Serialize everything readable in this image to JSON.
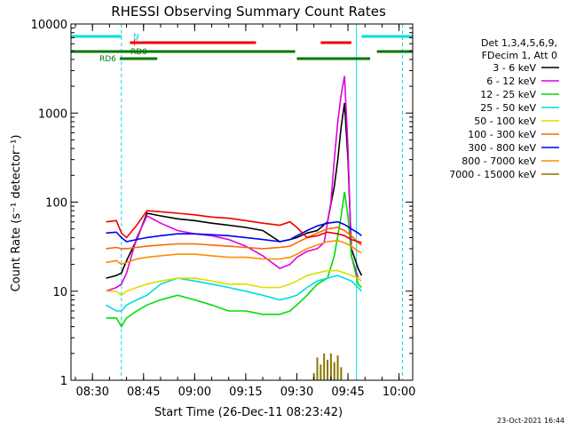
{
  "chart_data": {
    "type": "line",
    "title": "RHESSI Observing Summary Count Rates",
    "xlabel": "Start Time (26-Dec-11 08:23:42)",
    "ylabel": "Count Rate (s⁻¹ detector⁻¹)",
    "y_scale": "log",
    "ylim": [
      1,
      10000
    ],
    "y_ticks": [
      {
        "value": 1,
        "label": "1"
      },
      {
        "value": 10,
        "label": "10"
      },
      {
        "value": 100,
        "label": "100"
      },
      {
        "value": 1000,
        "label": "1000"
      },
      {
        "value": 10000,
        "label": "10000"
      }
    ],
    "xlim": [
      "08:23:42",
      "10:04:00"
    ],
    "x_ticks": [
      "08:30",
      "08:45",
      "09:00",
      "09:15",
      "09:30",
      "09:45",
      "10:00"
    ],
    "grid": false,
    "legend_position": "right",
    "legend_header": [
      "Det 1,3,4,5,6,9,",
      "FDecim 1, Att 0"
    ],
    "footer_timestamp": "23-Oct-2021 16:44",
    "flags": {
      "N_label": "N",
      "F_label": "F",
      "RD0_label": "RD0",
      "RD6_label": "RD6",
      "N": [
        [
          "08:23:42",
          "08:38:30"
        ],
        [
          "09:49:00",
          "10:04:00"
        ]
      ],
      "F": [
        [
          "08:41:00",
          "09:18:00"
        ],
        [
          "09:37:00",
          "09:46:00"
        ]
      ],
      "RD0": [
        [
          "08:23:42",
          "09:29:30"
        ],
        [
          "09:53:30",
          "10:04:00"
        ]
      ],
      "RD6": [
        [
          "08:38:00",
          "08:49:00"
        ],
        [
          "09:30:00",
          "09:51:30"
        ]
      ]
    },
    "markers": [
      {
        "name": "night-start",
        "time": "08:23:42",
        "style": "solid"
      },
      {
        "name": "night-end",
        "time": "08:38:30",
        "style": "dashed"
      },
      {
        "name": "night-start-2",
        "time": "09:47:30",
        "style": "solid"
      },
      {
        "name": "night-end-2",
        "time": "10:01:00",
        "style": "dashed"
      }
    ],
    "series": [
      {
        "name": "3 - 6 keV",
        "color": "#000000",
        "points": [
          [
            "08:34",
            "14"
          ],
          [
            "08:37",
            "15"
          ],
          [
            "08:38:30",
            "16"
          ],
          [
            "08:40",
            "22"
          ],
          [
            "08:43",
            "38"
          ],
          [
            "08:46",
            "75"
          ],
          [
            "08:50",
            "70"
          ],
          [
            "08:55",
            "65"
          ],
          [
            "09:00",
            "62"
          ],
          [
            "09:05",
            "58"
          ],
          [
            "09:10",
            "55"
          ],
          [
            "09:15",
            "52"
          ],
          [
            "09:20",
            "48"
          ],
          [
            "09:25",
            "36"
          ],
          [
            "09:28",
            "38"
          ],
          [
            "09:30",
            "40"
          ],
          [
            "09:33",
            "45"
          ],
          [
            "09:36",
            "48"
          ],
          [
            "09:39",
            "60"
          ],
          [
            "09:41",
            "150"
          ],
          [
            "09:42",
            "300"
          ],
          [
            "09:43",
            "700"
          ],
          [
            "09:44",
            "1300"
          ],
          [
            "09:45",
            "300"
          ],
          [
            "09:46",
            "30"
          ],
          [
            "09:48",
            "18"
          ],
          [
            "09:49",
            "15"
          ]
        ]
      },
      {
        "name": "6 - 12 keV",
        "color": "#e000e0",
        "points": [
          [
            "08:34",
            "10"
          ],
          [
            "08:37",
            "11"
          ],
          [
            "08:38:30",
            "12"
          ],
          [
            "08:40",
            "16"
          ],
          [
            "08:43",
            "40"
          ],
          [
            "08:46",
            "70"
          ],
          [
            "08:50",
            "58"
          ],
          [
            "08:55",
            "48"
          ],
          [
            "09:00",
            "44"
          ],
          [
            "09:05",
            "42"
          ],
          [
            "09:10",
            "38"
          ],
          [
            "09:15",
            "32"
          ],
          [
            "09:20",
            "25"
          ],
          [
            "09:25",
            "18"
          ],
          [
            "09:28",
            "20"
          ],
          [
            "09:30",
            "24"
          ],
          [
            "09:33",
            "28"
          ],
          [
            "09:36",
            "30"
          ],
          [
            "09:38",
            "35"
          ],
          [
            "09:40",
            "100"
          ],
          [
            "09:41",
            "300"
          ],
          [
            "09:42",
            "800"
          ],
          [
            "09:43",
            "1600"
          ],
          [
            "09:44",
            "2600"
          ],
          [
            "09:45",
            "400"
          ],
          [
            "09:46",
            "25"
          ],
          [
            "09:48",
            "14"
          ],
          [
            "09:49",
            "13"
          ]
        ]
      },
      {
        "name": "12 - 25 keV",
        "color": "#00dd00",
        "points": [
          [
            "08:34",
            "5"
          ],
          [
            "08:37",
            "5"
          ],
          [
            "08:38:30",
            "4"
          ],
          [
            "08:40",
            "5"
          ],
          [
            "08:43",
            "6"
          ],
          [
            "08:46",
            "7"
          ],
          [
            "08:50",
            "8"
          ],
          [
            "08:55",
            "9"
          ],
          [
            "09:00",
            "8"
          ],
          [
            "09:05",
            "7"
          ],
          [
            "09:10",
            "6"
          ],
          [
            "09:15",
            "6"
          ],
          [
            "09:20",
            "5.5"
          ],
          [
            "09:25",
            "5.5"
          ],
          [
            "09:28",
            "6"
          ],
          [
            "09:30",
            "7"
          ],
          [
            "09:33",
            "9"
          ],
          [
            "09:36",
            "12"
          ],
          [
            "09:39",
            "14"
          ],
          [
            "09:41",
            "25"
          ],
          [
            "09:43",
            "70"
          ],
          [
            "09:44",
            "130"
          ],
          [
            "09:45",
            "70"
          ],
          [
            "09:46",
            "25"
          ],
          [
            "09:48",
            "12"
          ],
          [
            "09:49",
            "11"
          ]
        ]
      },
      {
        "name": "25 - 50 keV",
        "color": "#00dddd",
        "points": [
          [
            "08:34",
            "7"
          ],
          [
            "08:37",
            "6"
          ],
          [
            "08:38:30",
            "6"
          ],
          [
            "08:40",
            "7"
          ],
          [
            "08:43",
            "8"
          ],
          [
            "08:46",
            "9"
          ],
          [
            "08:50",
            "12"
          ],
          [
            "08:55",
            "14"
          ],
          [
            "09:00",
            "13"
          ],
          [
            "09:05",
            "12"
          ],
          [
            "09:10",
            "11"
          ],
          [
            "09:15",
            "10"
          ],
          [
            "09:20",
            "9"
          ],
          [
            "09:25",
            "8"
          ],
          [
            "09:28",
            "8.5"
          ],
          [
            "09:30",
            "9"
          ],
          [
            "09:33",
            "11"
          ],
          [
            "09:36",
            "13"
          ],
          [
            "09:39",
            "14"
          ],
          [
            "09:42",
            "15"
          ],
          [
            "09:44",
            "14"
          ],
          [
            "09:46",
            "13"
          ],
          [
            "09:48",
            "11"
          ],
          [
            "09:49",
            "10"
          ]
        ]
      },
      {
        "name": "50 - 100 keV",
        "color": "#dddd00",
        "points": [
          [
            "08:34",
            "10"
          ],
          [
            "08:37",
            "10"
          ],
          [
            "08:38:30",
            "9"
          ],
          [
            "08:40",
            "10"
          ],
          [
            "08:43",
            "11"
          ],
          [
            "08:46",
            "12"
          ],
          [
            "08:50",
            "13"
          ],
          [
            "08:55",
            "14"
          ],
          [
            "09:00",
            "14"
          ],
          [
            "09:05",
            "13"
          ],
          [
            "09:10",
            "12"
          ],
          [
            "09:15",
            "12"
          ],
          [
            "09:20",
            "11"
          ],
          [
            "09:25",
            "11"
          ],
          [
            "09:28",
            "12"
          ],
          [
            "09:30",
            "13"
          ],
          [
            "09:33",
            "15"
          ],
          [
            "09:36",
            "16"
          ],
          [
            "09:39",
            "17"
          ],
          [
            "09:42",
            "17"
          ],
          [
            "09:44",
            "16"
          ],
          [
            "09:46",
            "15"
          ],
          [
            "09:48",
            "14"
          ],
          [
            "09:49",
            "13"
          ]
        ]
      },
      {
        "name": "100 - 300 keV",
        "color": "#ff6600",
        "points": [
          [
            "08:34",
            "30"
          ],
          [
            "08:37",
            "31"
          ],
          [
            "08:38:30",
            "30"
          ],
          [
            "08:40",
            "30"
          ],
          [
            "08:43",
            "31"
          ],
          [
            "08:46",
            "32"
          ],
          [
            "08:50",
            "33"
          ],
          [
            "08:55",
            "34"
          ],
          [
            "09:00",
            "34"
          ],
          [
            "09:05",
            "33"
          ],
          [
            "09:10",
            "32"
          ],
          [
            "09:15",
            "31"
          ],
          [
            "09:20",
            "30"
          ],
          [
            "09:25",
            "31"
          ],
          [
            "09:28",
            "32"
          ],
          [
            "09:30",
            "35"
          ],
          [
            "09:33",
            "40"
          ],
          [
            "09:36",
            "45"
          ],
          [
            "09:39",
            "50"
          ],
          [
            "09:42",
            "52"
          ],
          [
            "09:44",
            "48"
          ],
          [
            "09:46",
            "42"
          ],
          [
            "09:48",
            "35"
          ],
          [
            "09:49",
            "33"
          ]
        ]
      },
      {
        "name": "300 - 800 keV",
        "color": "#0000ee",
        "points": [
          [
            "08:34",
            "45"
          ],
          [
            "08:37",
            "46"
          ],
          [
            "08:38:30",
            "40"
          ],
          [
            "08:40",
            "36"
          ],
          [
            "08:43",
            "38"
          ],
          [
            "08:46",
            "40"
          ],
          [
            "08:50",
            "42"
          ],
          [
            "08:55",
            "44"
          ],
          [
            "09:00",
            "44"
          ],
          [
            "09:05",
            "43"
          ],
          [
            "09:10",
            "42"
          ],
          [
            "09:15",
            "40"
          ],
          [
            "09:20",
            "38"
          ],
          [
            "09:25",
            "36"
          ],
          [
            "09:28",
            "38"
          ],
          [
            "09:30",
            "42"
          ],
          [
            "09:33",
            "48"
          ],
          [
            "09:36",
            "54"
          ],
          [
            "09:39",
            "58"
          ],
          [
            "09:42",
            "60"
          ],
          [
            "09:44",
            "56"
          ],
          [
            "09:46",
            "50"
          ],
          [
            "09:48",
            "45"
          ],
          [
            "09:49",
            "42"
          ]
        ]
      },
      {
        "name": "800 - 7000 keV",
        "color": "#ff8c00",
        "points": [
          [
            "08:34",
            "21"
          ],
          [
            "08:37",
            "22"
          ],
          [
            "08:38:30",
            "20"
          ],
          [
            "08:40",
            "21"
          ],
          [
            "08:43",
            "23"
          ],
          [
            "08:46",
            "24"
          ],
          [
            "08:50",
            "25"
          ],
          [
            "08:55",
            "26"
          ],
          [
            "09:00",
            "26"
          ],
          [
            "09:05",
            "25"
          ],
          [
            "09:10",
            "24"
          ],
          [
            "09:15",
            "24"
          ],
          [
            "09:20",
            "23"
          ],
          [
            "09:25",
            "23"
          ],
          [
            "09:28",
            "24"
          ],
          [
            "09:30",
            "26"
          ],
          [
            "09:33",
            "30"
          ],
          [
            "09:36",
            "33"
          ],
          [
            "09:39",
            "36"
          ],
          [
            "09:42",
            "37"
          ],
          [
            "09:44",
            "35"
          ],
          [
            "09:46",
            "32"
          ],
          [
            "09:48",
            "28"
          ],
          [
            "09:49",
            "27"
          ]
        ]
      },
      {
        "name": "7000 - 15000 keV",
        "color": "#8b7500",
        "points": [
          [
            "09:35",
            "1.2"
          ],
          [
            "09:36",
            "1.8"
          ],
          [
            "09:37",
            "1.5"
          ],
          [
            "09:38",
            "2.0"
          ],
          [
            "09:39",
            "1.7"
          ],
          [
            "09:40",
            "2.0"
          ],
          [
            "09:41",
            "1.6"
          ],
          [
            "09:42",
            "1.9"
          ],
          [
            "09:43",
            "1.4"
          ]
        ]
      },
      {
        "name": "red-extra",
        "color": "#ee0000",
        "hidden_in_legend": true,
        "points": [
          [
            "08:34",
            "60"
          ],
          [
            "08:37",
            "62"
          ],
          [
            "08:38:30",
            "45"
          ],
          [
            "08:40",
            "40"
          ],
          [
            "08:43",
            "55"
          ],
          [
            "08:46",
            "80"
          ],
          [
            "08:50",
            "78"
          ],
          [
            "08:55",
            "75"
          ],
          [
            "09:00",
            "72"
          ],
          [
            "09:05",
            "68"
          ],
          [
            "09:10",
            "66"
          ],
          [
            "09:15",
            "62"
          ],
          [
            "09:20",
            "58"
          ],
          [
            "09:25",
            "55"
          ],
          [
            "09:28",
            "60"
          ],
          [
            "09:30",
            "52"
          ],
          [
            "09:33",
            "40"
          ],
          [
            "09:36",
            "42"
          ],
          [
            "09:39",
            "46"
          ],
          [
            "09:42",
            "44"
          ],
          [
            "09:44",
            "42"
          ],
          [
            "09:46",
            "38"
          ],
          [
            "09:48",
            "36"
          ],
          [
            "09:49",
            "35"
          ]
        ]
      }
    ]
  }
}
